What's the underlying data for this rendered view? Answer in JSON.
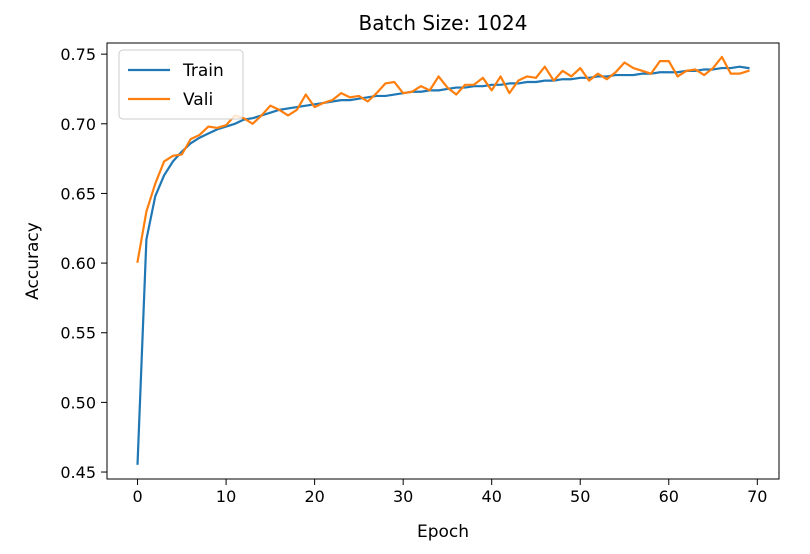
{
  "chart_data": {
    "type": "line",
    "title": "Batch Size: 1024",
    "xlabel": "Epoch",
    "ylabel": "Accuracy",
    "xlim": [
      -3.45,
      72.45
    ],
    "ylim": [
      0.445,
      0.758
    ],
    "xticks": [
      0,
      10,
      20,
      30,
      40,
      50,
      60,
      70
    ],
    "xtick_labels": [
      "0",
      "10",
      "20",
      "30",
      "40",
      "50",
      "60",
      "70"
    ],
    "yticks": [
      0.45,
      0.5,
      0.55,
      0.6,
      0.65,
      0.7,
      0.75
    ],
    "ytick_labels": [
      "0.45",
      "0.50",
      "0.55",
      "0.60",
      "0.65",
      "0.70",
      "0.75"
    ],
    "grid": false,
    "legend_position": "top-left",
    "series": [
      {
        "name": "Train",
        "color": "#1f77b4",
        "values": [
          0.456,
          0.617,
          0.648,
          0.663,
          0.673,
          0.68,
          0.686,
          0.69,
          0.693,
          0.696,
          0.698,
          0.7,
          0.703,
          0.704,
          0.706,
          0.708,
          0.71,
          0.711,
          0.712,
          0.713,
          0.714,
          0.715,
          0.716,
          0.717,
          0.717,
          0.718,
          0.719,
          0.72,
          0.72,
          0.721,
          0.722,
          0.723,
          0.723,
          0.724,
          0.724,
          0.725,
          0.726,
          0.726,
          0.727,
          0.727,
          0.728,
          0.728,
          0.729,
          0.729,
          0.73,
          0.73,
          0.731,
          0.731,
          0.732,
          0.732,
          0.733,
          0.733,
          0.734,
          0.734,
          0.735,
          0.735,
          0.735,
          0.736,
          0.736,
          0.737,
          0.737,
          0.737,
          0.738,
          0.738,
          0.739,
          0.739,
          0.74,
          0.74,
          0.741,
          0.74
        ]
      },
      {
        "name": "Vali",
        "color": "#ff7f0e",
        "values": [
          0.601,
          0.637,
          0.657,
          0.673,
          0.677,
          0.678,
          0.689,
          0.692,
          0.698,
          0.697,
          0.699,
          0.706,
          0.704,
          0.7,
          0.706,
          0.713,
          0.71,
          0.706,
          0.71,
          0.721,
          0.712,
          0.715,
          0.717,
          0.722,
          0.719,
          0.72,
          0.716,
          0.722,
          0.729,
          0.73,
          0.722,
          0.723,
          0.727,
          0.724,
          0.734,
          0.726,
          0.721,
          0.728,
          0.728,
          0.733,
          0.724,
          0.734,
          0.722,
          0.731,
          0.734,
          0.733,
          0.741,
          0.731,
          0.738,
          0.734,
          0.74,
          0.731,
          0.736,
          0.732,
          0.737,
          0.744,
          0.74,
          0.738,
          0.736,
          0.745,
          0.745,
          0.734,
          0.738,
          0.739,
          0.735,
          0.74,
          0.748,
          0.736,
          0.736,
          0.738
        ]
      }
    ]
  }
}
